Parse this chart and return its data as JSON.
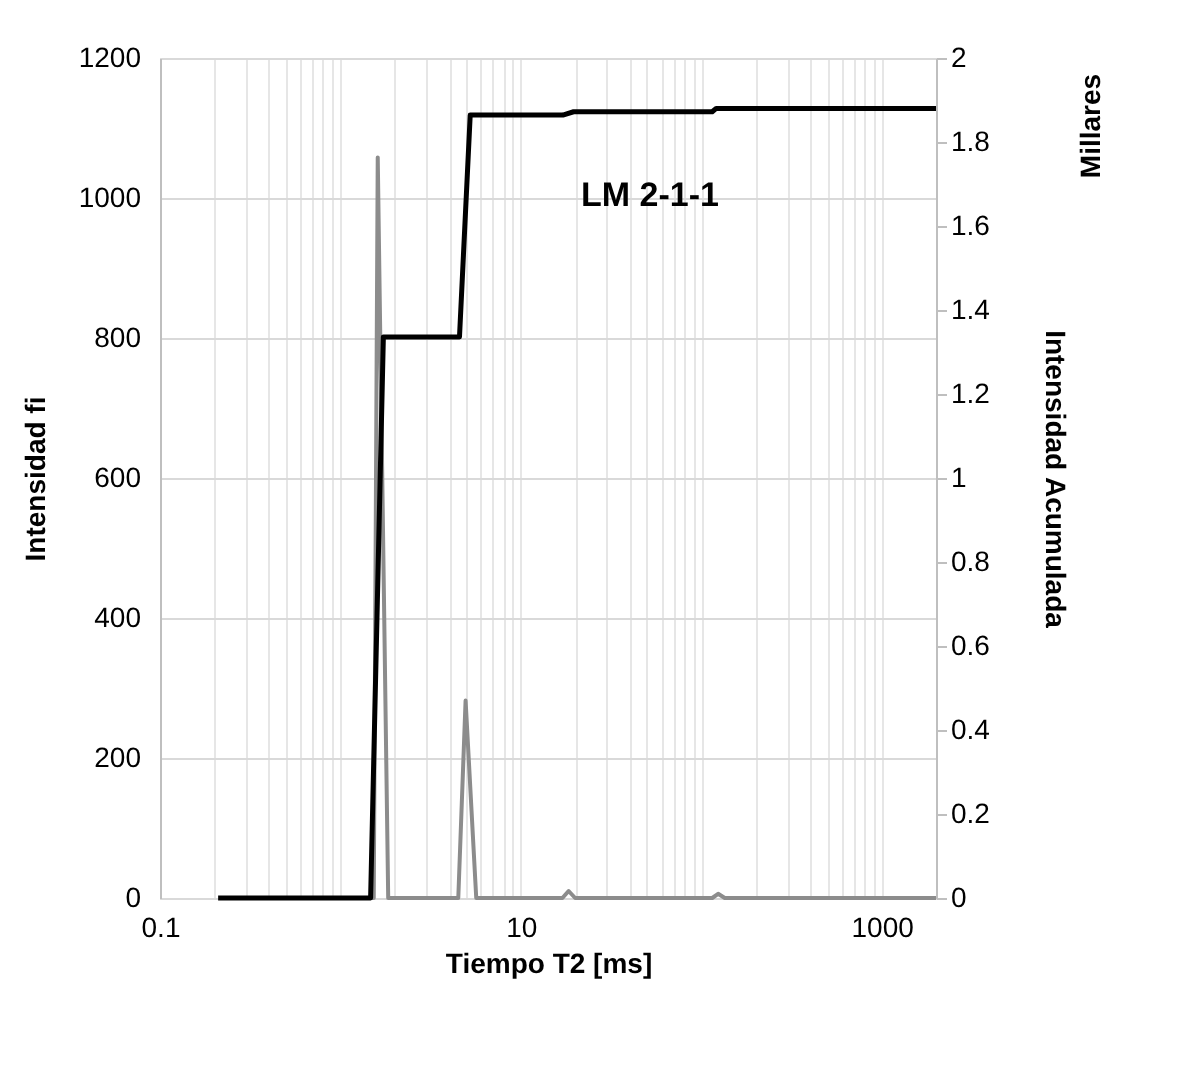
{
  "chart_data": {
    "type": "line",
    "xlabel": "Tiempo T2 [ms]",
    "ylabel": "Intensidad fi",
    "y2label": "Intensidad  Acumulada",
    "annotations": [
      "LM 2-1-1",
      "Millares"
    ],
    "log": "x",
    "grid": true,
    "marker": "none",
    "line_style": "solid",
    "xlim": [
      0.1,
      2000
    ],
    "xticks": [
      0.1,
      {
        "value": 0.2,
        "label": null
      },
      {
        "value": 0.3,
        "label": null
      },
      {
        "value": 0.4,
        "label": null
      },
      {
        "value": 0.5,
        "label": null
      },
      {
        "value": 0.6,
        "label": null
      },
      {
        "value": 0.7,
        "label": null
      },
      {
        "value": 0.8,
        "label": null
      },
      {
        "value": 0.9,
        "label": null
      },
      {
        "value": 1,
        "label": null
      },
      {
        "value": 2,
        "label": null
      },
      {
        "value": 3,
        "label": null
      },
      {
        "value": 4,
        "label": null
      },
      {
        "value": 5,
        "label": null
      },
      {
        "value": 6,
        "label": null
      },
      {
        "value": 7,
        "label": null
      },
      {
        "value": 8,
        "label": null
      },
      {
        "value": 9,
        "label": null
      },
      10,
      {
        "value": 20,
        "label": null
      },
      {
        "value": 30,
        "label": null
      },
      {
        "value": 40,
        "label": null
      },
      {
        "value": 50,
        "label": null
      },
      {
        "value": 60,
        "label": null
      },
      {
        "value": 70,
        "label": null
      },
      {
        "value": 80,
        "label": null
      },
      {
        "value": 90,
        "label": null
      },
      {
        "value": 100,
        "label": null
      },
      {
        "value": 200,
        "label": null
      },
      {
        "value": 300,
        "label": null
      },
      {
        "value": 400,
        "label": null
      },
      {
        "value": 500,
        "label": null
      },
      {
        "value": 600,
        "label": null
      },
      {
        "value": 700,
        "label": null
      },
      {
        "value": 800,
        "label": null
      },
      {
        "value": 900,
        "label": null
      },
      1000
    ],
    "ylim": [
      0,
      1200
    ],
    "yticks": [
      0,
      200,
      400,
      600,
      800,
      1000,
      1200
    ],
    "y2lim": [
      0,
      2
    ],
    "y2ticks": [
      0,
      0.2,
      0.4,
      0.6,
      0.8,
      1,
      1.2,
      1.4,
      1.6,
      1.8,
      2
    ],
    "series": [
      {
        "color": "#8c8c8c",
        "x": [
          1.49,
          1.53,
          1.61,
          1.84,
          4.5,
          4.94,
          5.66,
          17,
          18.4,
          20,
          115,
          124,
          135,
          2000
        ],
        "values": [
          0,
          0,
          1058,
          0,
          0,
          282,
          0,
          0,
          10,
          0,
          0,
          6,
          0,
          0
        ]
      },
      {
        "color": "#000000",
        "axis": "y2",
        "x": [
          0.21,
          1.47,
          1.73,
          4.57,
          5.24,
          17.1,
          19.6,
          115,
          121,
          2000
        ],
        "values": [
          0,
          0,
          1.336,
          1.336,
          1.864,
          1.864,
          1.872,
          1.872,
          1.88,
          1.88
        ]
      }
    ]
  }
}
